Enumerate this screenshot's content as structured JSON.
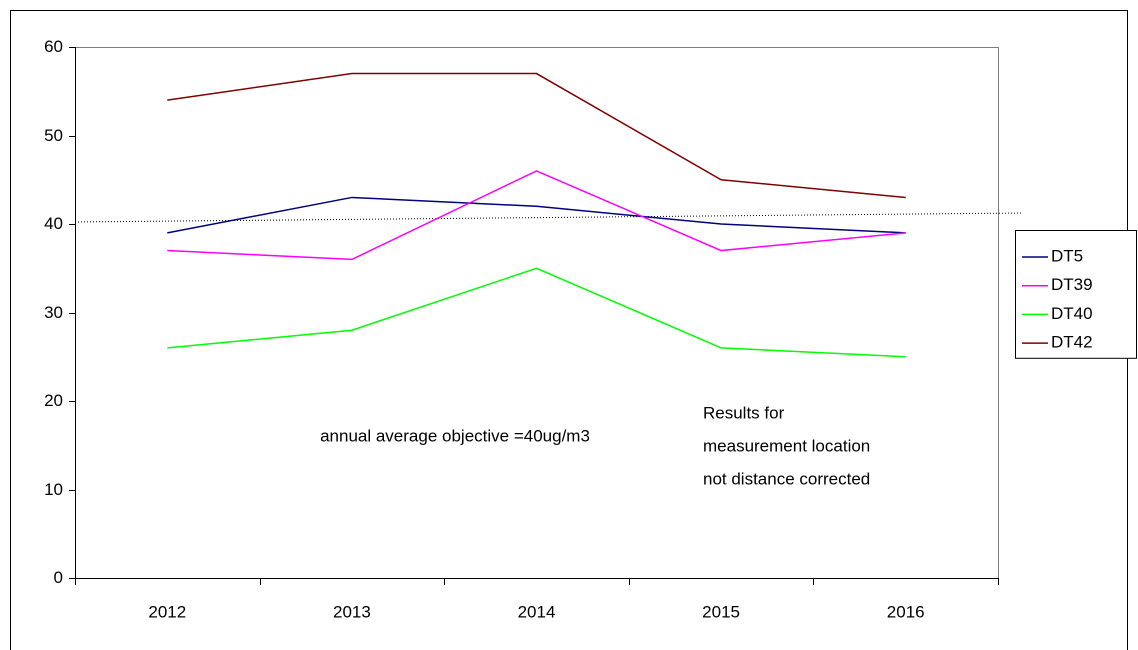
{
  "chart_data": {
    "type": "line",
    "categories": [
      "2012",
      "2013",
      "2014",
      "2015",
      "2016"
    ],
    "series": [
      {
        "name": "DT5",
        "color": "#000080",
        "values": [
          39,
          43,
          42,
          40,
          39
        ]
      },
      {
        "name": "DT39",
        "color": "#ff00ff",
        "values": [
          37,
          36,
          46,
          37,
          39
        ]
      },
      {
        "name": "DT40",
        "color": "#00ff00",
        "values": [
          26,
          28,
          35,
          26,
          25
        ]
      },
      {
        "name": "DT42",
        "color": "#800000",
        "values": [
          54,
          57,
          57,
          45,
          43
        ]
      }
    ],
    "ylim": [
      0,
      60
    ],
    "yticks": [
      0,
      10,
      20,
      30,
      40,
      50,
      60
    ],
    "legend": "right",
    "annotations": [
      [
        "annual average objective =40ug/m3"
      ],
      [
        "Results for",
        "measurement location",
        "not distance corrected"
      ]
    ]
  }
}
